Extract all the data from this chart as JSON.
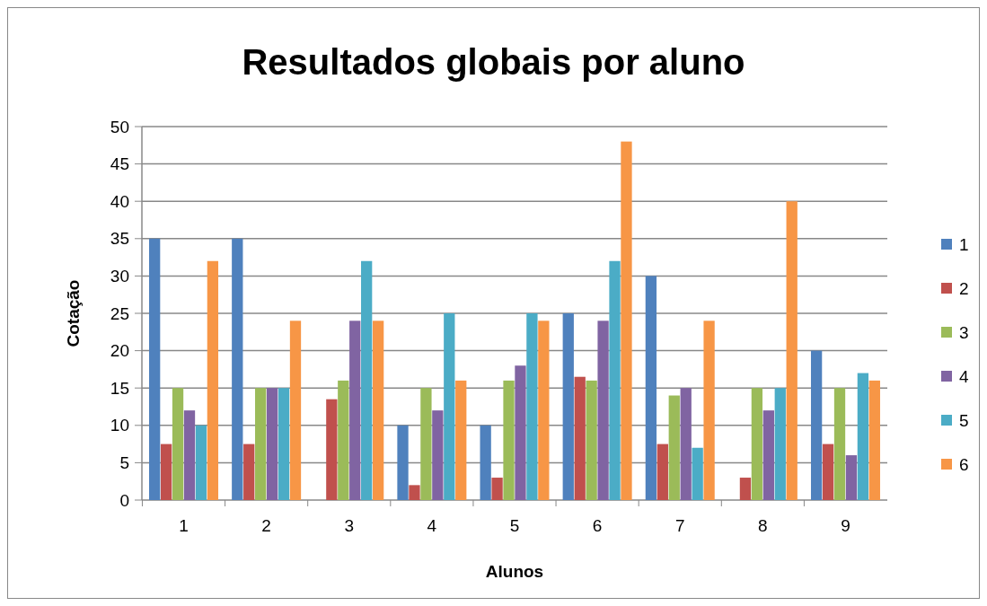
{
  "chart_data": {
    "type": "bar",
    "title": "Resultados globais por aluno",
    "xlabel": "Alunos",
    "ylabel": "Cotação",
    "categories": [
      "1",
      "2",
      "3",
      "4",
      "5",
      "6",
      "7",
      "8",
      "9"
    ],
    "series": [
      {
        "name": "1",
        "color": "#4f81bd",
        "values": [
          35,
          35,
          0,
          10,
          10,
          25,
          30,
          0,
          20
        ]
      },
      {
        "name": "2",
        "color": "#c0504d",
        "values": [
          7.5,
          7.5,
          13.5,
          2,
          3,
          16.5,
          7.5,
          3,
          7.5
        ]
      },
      {
        "name": "3",
        "color": "#9bbb59",
        "values": [
          15,
          15,
          16,
          15,
          16,
          16,
          14,
          15,
          15
        ]
      },
      {
        "name": "4",
        "color": "#8064a2",
        "values": [
          12,
          15,
          24,
          12,
          18,
          24,
          15,
          12,
          6
        ]
      },
      {
        "name": "5",
        "color": "#4bacc6",
        "values": [
          10,
          15,
          32,
          25,
          25,
          32,
          7,
          15,
          17
        ]
      },
      {
        "name": "6",
        "color": "#f79646",
        "values": [
          32,
          24,
          24,
          16,
          24,
          48,
          24,
          40,
          16
        ]
      }
    ],
    "ylim": [
      0,
      50
    ],
    "yticks": [
      0,
      5,
      10,
      15,
      20,
      25,
      30,
      35,
      40,
      45,
      50
    ],
    "grid": "y",
    "legend": "right"
  }
}
